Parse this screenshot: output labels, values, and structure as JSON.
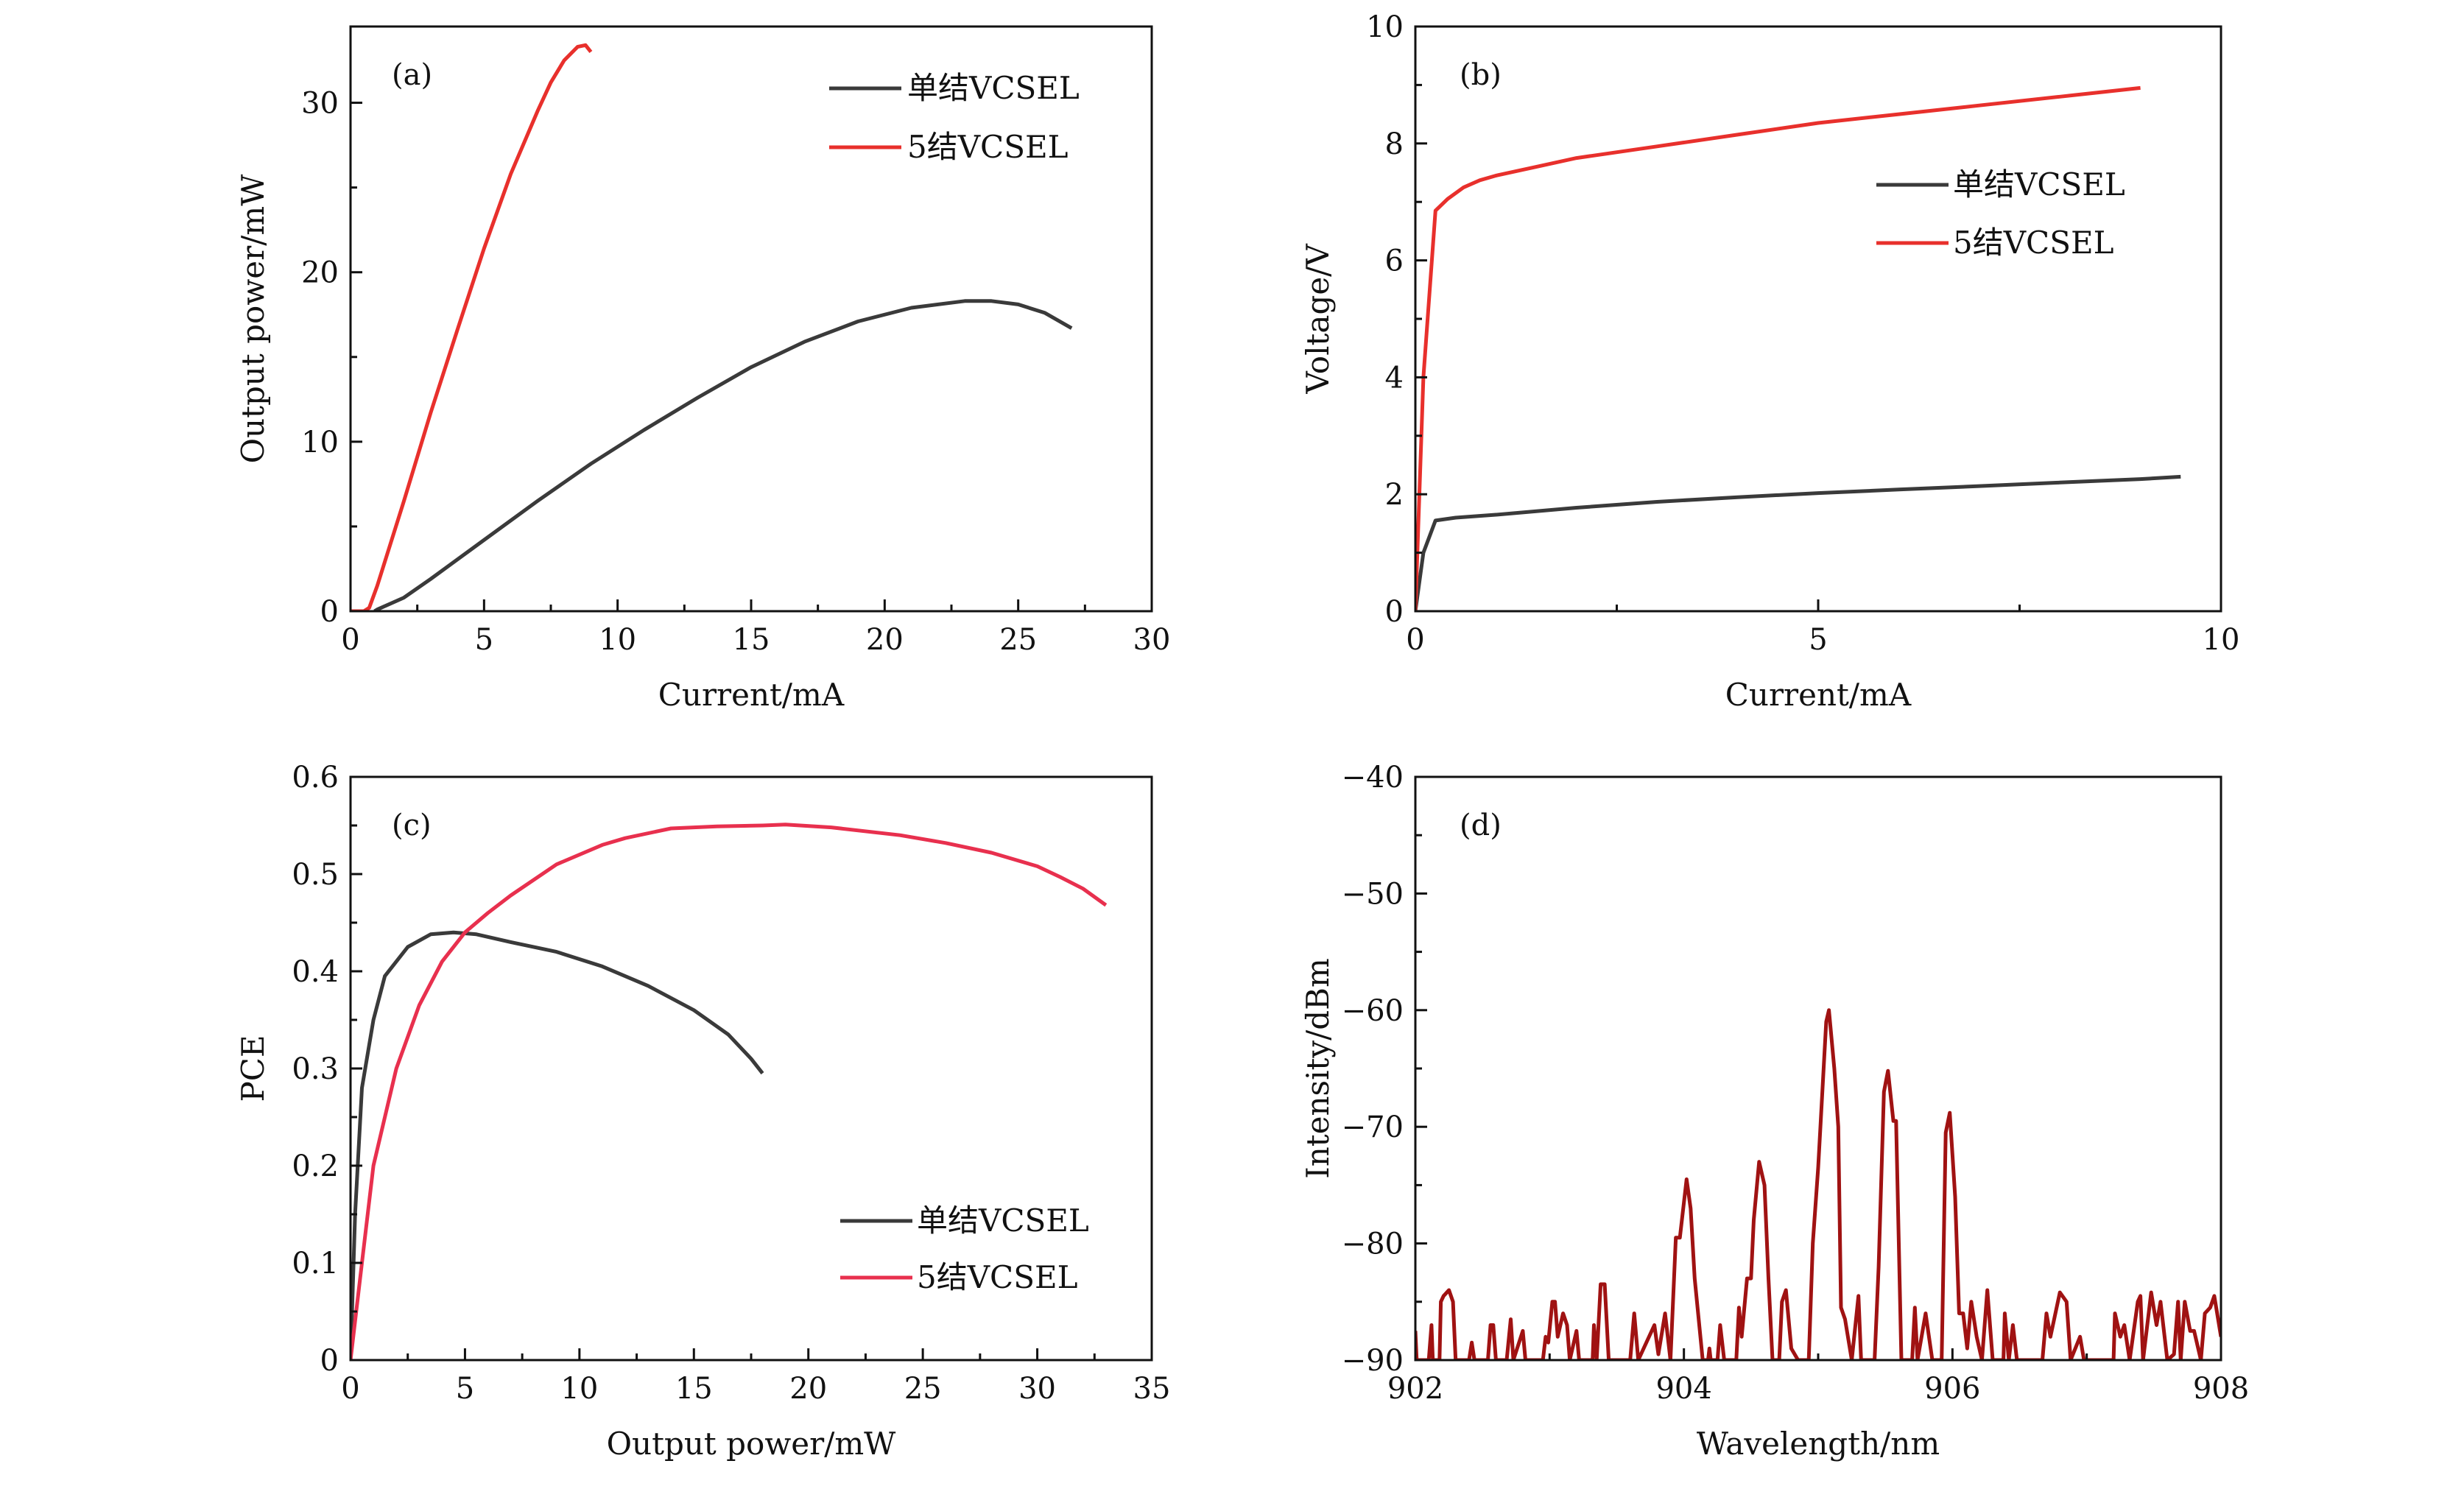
{
  "chart_data": [
    {
      "panel": "(a)",
      "type": "line",
      "xlabel": "Current/mA",
      "ylabel": "Output power/mW",
      "xlim": [
        0,
        30
      ],
      "ylim": [
        0,
        34.5
      ],
      "xticks": [
        0,
        5,
        10,
        15,
        20,
        25,
        30
      ],
      "xminor": 2.5,
      "yticks": [
        0,
        10,
        20,
        30
      ],
      "yminor": 5,
      "legend": "top-right",
      "series": [
        {
          "name": "单结VCSEL",
          "color": "#3a3a3a",
          "x": [
            0.9,
            1,
            2,
            3,
            5,
            7,
            9,
            11,
            13,
            15,
            17,
            19,
            21,
            23,
            24,
            25,
            26,
            27
          ],
          "y": [
            0,
            0.1,
            0.8,
            1.9,
            4.2,
            6.5,
            8.7,
            10.7,
            12.6,
            14.4,
            15.9,
            17.1,
            17.9,
            18.3,
            18.3,
            18.1,
            17.6,
            16.7
          ]
        },
        {
          "name": "5结VCSEL",
          "color": "#e8302c",
          "x": [
            0,
            0.5,
            0.7,
            1,
            2,
            3,
            4,
            5,
            6,
            7,
            7.5,
            8,
            8.5,
            8.8,
            9
          ],
          "y": [
            0,
            0,
            0.2,
            1.5,
            6.5,
            11.7,
            16.6,
            21.4,
            25.8,
            29.5,
            31.2,
            32.5,
            33.3,
            33.4,
            33.0
          ]
        }
      ]
    },
    {
      "panel": "(b)",
      "type": "line",
      "xlabel": "Current/mA",
      "ylabel": "Voltage/V",
      "xlim": [
        0,
        10
      ],
      "ylim": [
        0,
        10
      ],
      "xticks": [
        0,
        5,
        10
      ],
      "xminor": 2.5,
      "yticks": [
        0,
        2,
        4,
        6,
        8,
        10
      ],
      "yminor": 1,
      "legend": "upper-right",
      "series": [
        {
          "name": "单结VCSEL",
          "color": "#3a3a3a",
          "x": [
            0,
            0.1,
            0.25,
            0.5,
            1,
            2,
            3,
            4,
            5,
            6,
            7,
            8,
            9,
            9.5
          ],
          "y": [
            0,
            1,
            1.55,
            1.6,
            1.65,
            1.77,
            1.87,
            1.95,
            2.02,
            2.08,
            2.14,
            2.2,
            2.26,
            2.3
          ]
        },
        {
          "name": "5结VCSEL",
          "color": "#e8302c",
          "x": [
            0,
            0.1,
            0.25,
            0.4,
            0.6,
            0.8,
            1,
            1.5,
            2,
            3,
            4,
            5,
            6,
            7,
            8,
            9
          ],
          "y": [
            0,
            4,
            6.85,
            7.05,
            7.25,
            7.37,
            7.45,
            7.6,
            7.75,
            7.95,
            8.15,
            8.35,
            8.5,
            8.65,
            8.8,
            8.95
          ]
        }
      ]
    },
    {
      "panel": "(c)",
      "type": "line",
      "xlabel": "Output power/mW",
      "ylabel": "PCE",
      "xlim": [
        0,
        35
      ],
      "ylim": [
        0,
        0.6
      ],
      "xticks": [
        0,
        5,
        10,
        15,
        20,
        25,
        30,
        35
      ],
      "xminor": 2.5,
      "yticks": [
        0,
        0.1,
        0.2,
        0.3,
        0.4,
        0.5,
        0.6
      ],
      "yminor": 0.05,
      "legend": "bottom-right",
      "series": [
        {
          "name": "单结VCSEL",
          "color": "#3a3a3a",
          "x": [
            0,
            0.2,
            0.5,
            1,
            1.5,
            2.5,
            3.5,
            4.5,
            5.5,
            7,
            9,
            11,
            13,
            15,
            16.5,
            17.5,
            18
          ],
          "y": [
            0,
            0.15,
            0.28,
            0.35,
            0.395,
            0.425,
            0.438,
            0.44,
            0.438,
            0.43,
            0.42,
            0.405,
            0.385,
            0.36,
            0.335,
            0.31,
            0.295
          ]
        },
        {
          "name": "5结VCSEL",
          "color": "#e8304e",
          "x": [
            0,
            0.5,
            1,
            2,
            3,
            4,
            5,
            6,
            7,
            9,
            11,
            12,
            14,
            16,
            18,
            19,
            21,
            24,
            26,
            28,
            30,
            31,
            32,
            33
          ],
          "y": [
            0,
            0.1,
            0.2,
            0.3,
            0.365,
            0.41,
            0.44,
            0.46,
            0.478,
            0.51,
            0.53,
            0.537,
            0.547,
            0.549,
            0.55,
            0.551,
            0.548,
            0.54,
            0.532,
            0.522,
            0.508,
            0.497,
            0.485,
            0.468
          ]
        }
      ]
    },
    {
      "panel": "(d)",
      "type": "line",
      "xlabel": "Wavelength/nm",
      "ylabel": "Intensity/dBm",
      "xlim": [
        902,
        908
      ],
      "ylim": [
        -90,
        -40
      ],
      "xticks": [
        902,
        904,
        906,
        908
      ],
      "xminor": 1,
      "yticks": [
        -90,
        -80,
        -70,
        -60,
        -50,
        -40
      ],
      "yminor": 5,
      "series": [
        {
          "color": "#a01212",
          "x": [
            902.0,
            902.01,
            902.1,
            902.12,
            902.13,
            902.18,
            902.19,
            902.21,
            902.25,
            902.28,
            902.3,
            902.4,
            902.42,
            902.44,
            902.54,
            902.56,
            902.58,
            902.6,
            902.68,
            902.71,
            902.73,
            902.8,
            902.82,
            902.95,
            902.97,
            902.99,
            903.02,
            903.04,
            903.06,
            903.1,
            903.13,
            903.15,
            903.2,
            903.22,
            903.32,
            903.33,
            903.35,
            903.38,
            903.41,
            903.44,
            903.6,
            903.63,
            903.66,
            903.78,
            903.81,
            903.86,
            903.9,
            903.94,
            903.97,
            904.02,
            904.05,
            904.08,
            904.14,
            904.18,
            904.19,
            904.2,
            904.25,
            904.27,
            904.3,
            904.39,
            904.41,
            904.43,
            904.47,
            904.5,
            904.52,
            904.56,
            904.6,
            904.63,
            904.66,
            904.71,
            904.73,
            904.76,
            904.8,
            904.85,
            904.93,
            904.96,
            905.0,
            905.06,
            905.08,
            905.12,
            905.15,
            905.17,
            905.2,
            905.25,
            905.3,
            905.32,
            905.42,
            905.45,
            905.49,
            905.52,
            905.56,
            905.58,
            905.62,
            905.7,
            905.72,
            905.74,
            905.8,
            905.85,
            905.92,
            905.95,
            905.98,
            906.02,
            906.05,
            906.08,
            906.11,
            906.14,
            906.18,
            906.22,
            906.26,
            906.3,
            906.38,
            906.39,
            906.42,
            906.45,
            906.48,
            906.67,
            906.7,
            906.73,
            906.8,
            906.85,
            906.88,
            906.95,
            906.98,
            907.2,
            907.21,
            907.25,
            907.28,
            907.32,
            907.38,
            907.4,
            907.42,
            907.48,
            907.52,
            907.55,
            907.6,
            907.65,
            907.68,
            907.7,
            907.73,
            907.77,
            907.8,
            907.85,
            907.88,
            907.92,
            907.95,
            908.0
          ],
          "y": [
            -87.5,
            -90,
            -90,
            -87,
            -90,
            -90,
            -85,
            -84.5,
            -84,
            -85,
            -90,
            -90,
            -88.5,
            -90,
            -90,
            -87,
            -87,
            -90,
            -90,
            -86.5,
            -90,
            -87.5,
            -90,
            -90,
            -88,
            -88.5,
            -85,
            -85,
            -88,
            -86,
            -87,
            -90,
            -87.5,
            -90,
            -90,
            -87,
            -90,
            -83.5,
            -83.5,
            -90,
            -90,
            -86,
            -90,
            -87,
            -89.5,
            -86,
            -90,
            -79.5,
            -79.5,
            -74.5,
            -77,
            -83,
            -90,
            -90,
            -89,
            -90,
            -90,
            -87,
            -90,
            -90,
            -85.5,
            -88,
            -83,
            -83,
            -78,
            -73,
            -75,
            -83,
            -90,
            -90,
            -85,
            -84,
            -89,
            -90,
            -90,
            -80,
            -73.5,
            -61,
            -60,
            -65,
            -70,
            -85.5,
            -86.5,
            -90,
            -84.5,
            -90,
            -90,
            -82,
            -67,
            -65.2,
            -69.5,
            -69.5,
            -90,
            -90,
            -85.5,
            -90,
            -86,
            -90,
            -90,
            -70.5,
            -68.8,
            -76,
            -86,
            -86,
            -89,
            -85,
            -88,
            -90,
            -84,
            -90,
            -90,
            -86,
            -90,
            -87,
            -90,
            -90,
            -86,
            -88,
            -84.2,
            -85,
            -90,
            -88,
            -90,
            -90,
            -86,
            -88,
            -87,
            -90,
            -85,
            -84.5,
            -90,
            -84.2,
            -87,
            -85,
            -90,
            -89.5,
            -85,
            -90,
            -85,
            -87.5,
            -87.5,
            -90,
            -86,
            -85.5,
            -84.5,
            -88
          ]
        }
      ]
    }
  ]
}
